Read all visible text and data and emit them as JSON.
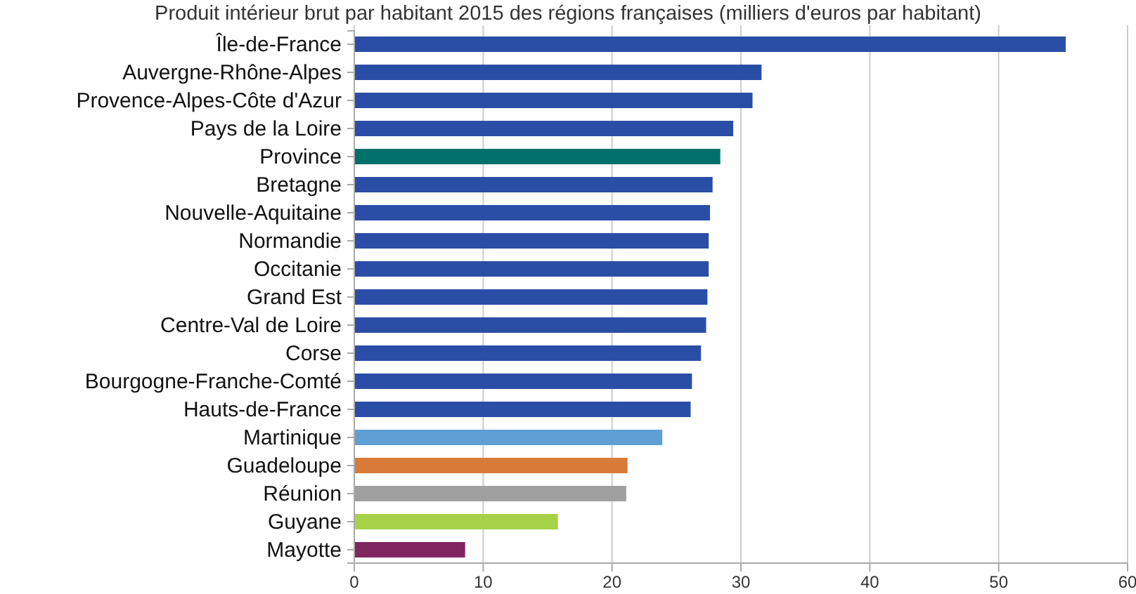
{
  "chart_data": {
    "type": "bar",
    "orientation": "horizontal",
    "title": "Produit intérieur brut par habitant 2015 des régions françaises (milliers d'euros par habitant)",
    "categories": [
      "Île-de-France",
      "Auvergne-Rhône-Alpes",
      "Provence-Alpes-Côte d'Azur",
      "Pays de la Loire",
      "Province",
      "Bretagne",
      "Nouvelle-Aquitaine",
      "Normandie",
      "Occitanie",
      "Grand Est",
      "Centre-Val de Loire",
      "Corse",
      "Bourgogne-Franche-Comté",
      "Hauts-de-France",
      "Martinique",
      "Guadeloupe",
      "Réunion",
      "Guyane",
      "Mayotte"
    ],
    "values": [
      55.2,
      31.6,
      30.9,
      29.4,
      28.4,
      27.8,
      27.6,
      27.5,
      27.5,
      27.4,
      27.3,
      26.9,
      26.2,
      26.1,
      23.9,
      21.2,
      21.1,
      15.8,
      8.6
    ],
    "colors": [
      "#2a4ea6",
      "#2a4ea6",
      "#2a4ea6",
      "#2a4ea6",
      "#00706b",
      "#2a4ea6",
      "#2a4ea6",
      "#2a4ea6",
      "#2a4ea6",
      "#2a4ea6",
      "#2a4ea6",
      "#2a4ea6",
      "#2a4ea6",
      "#2a4ea6",
      "#609fd4",
      "#d87b38",
      "#a0a0a0",
      "#a6d248",
      "#7f2661"
    ],
    "xlim": [
      0,
      60
    ],
    "xticks": [
      0,
      10,
      20,
      30,
      40,
      50,
      60
    ],
    "grid": "x"
  }
}
